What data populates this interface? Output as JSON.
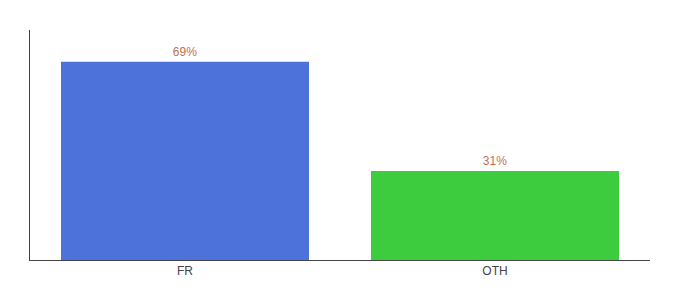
{
  "chart_data": {
    "type": "bar",
    "categories": [
      "FR",
      "OTH"
    ],
    "values": [
      69,
      31
    ],
    "value_labels": [
      "69%",
      "31%"
    ],
    "data_labels": true,
    "colors": [
      "#4d72d9",
      "#3dcc3d"
    ],
    "ylim": [
      0,
      80
    ],
    "yticks": [],
    "tick_labels": "x",
    "grid": false
  }
}
